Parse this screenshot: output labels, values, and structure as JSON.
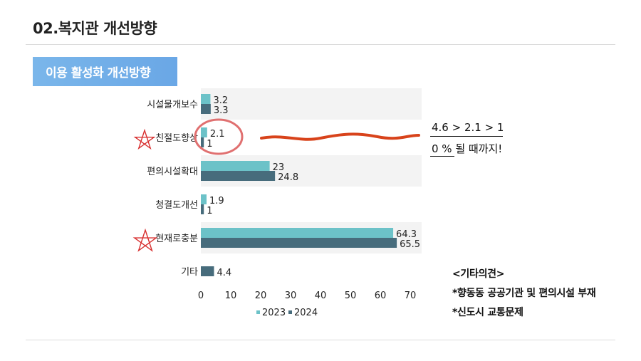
{
  "page_title": "02.복지관 개선방향",
  "section_label": "이용 활성화 개선방향",
  "chart_data": {
    "type": "bar",
    "orientation": "horizontal",
    "categories": [
      "시설물개보수",
      "친절도향상",
      "편의시설확대",
      "청결도개선",
      "현재로충분",
      "기타"
    ],
    "series": [
      {
        "name": "2023",
        "color": "#6cc2c8",
        "values": [
          3.2,
          2.1,
          23,
          1.9,
          64.3,
          null
        ]
      },
      {
        "name": "2024",
        "color": "#476c7c",
        "values": [
          3.3,
          1,
          24.8,
          1,
          65.5,
          4.4
        ]
      }
    ],
    "xlim": [
      0,
      70
    ],
    "xticks": [
      0,
      10,
      20,
      30,
      40,
      50,
      60,
      70
    ],
    "legend_position": "bottom"
  },
  "annotations": {
    "ratio_line": "4.6 > 2.1 > 1",
    "goal_line": "0 % 될 때까지!"
  },
  "notes": {
    "heading": "<기타의견>",
    "items": [
      "*향동동 공공기관 및 편의시설 부재",
      "*신도시 교통문제"
    ]
  }
}
